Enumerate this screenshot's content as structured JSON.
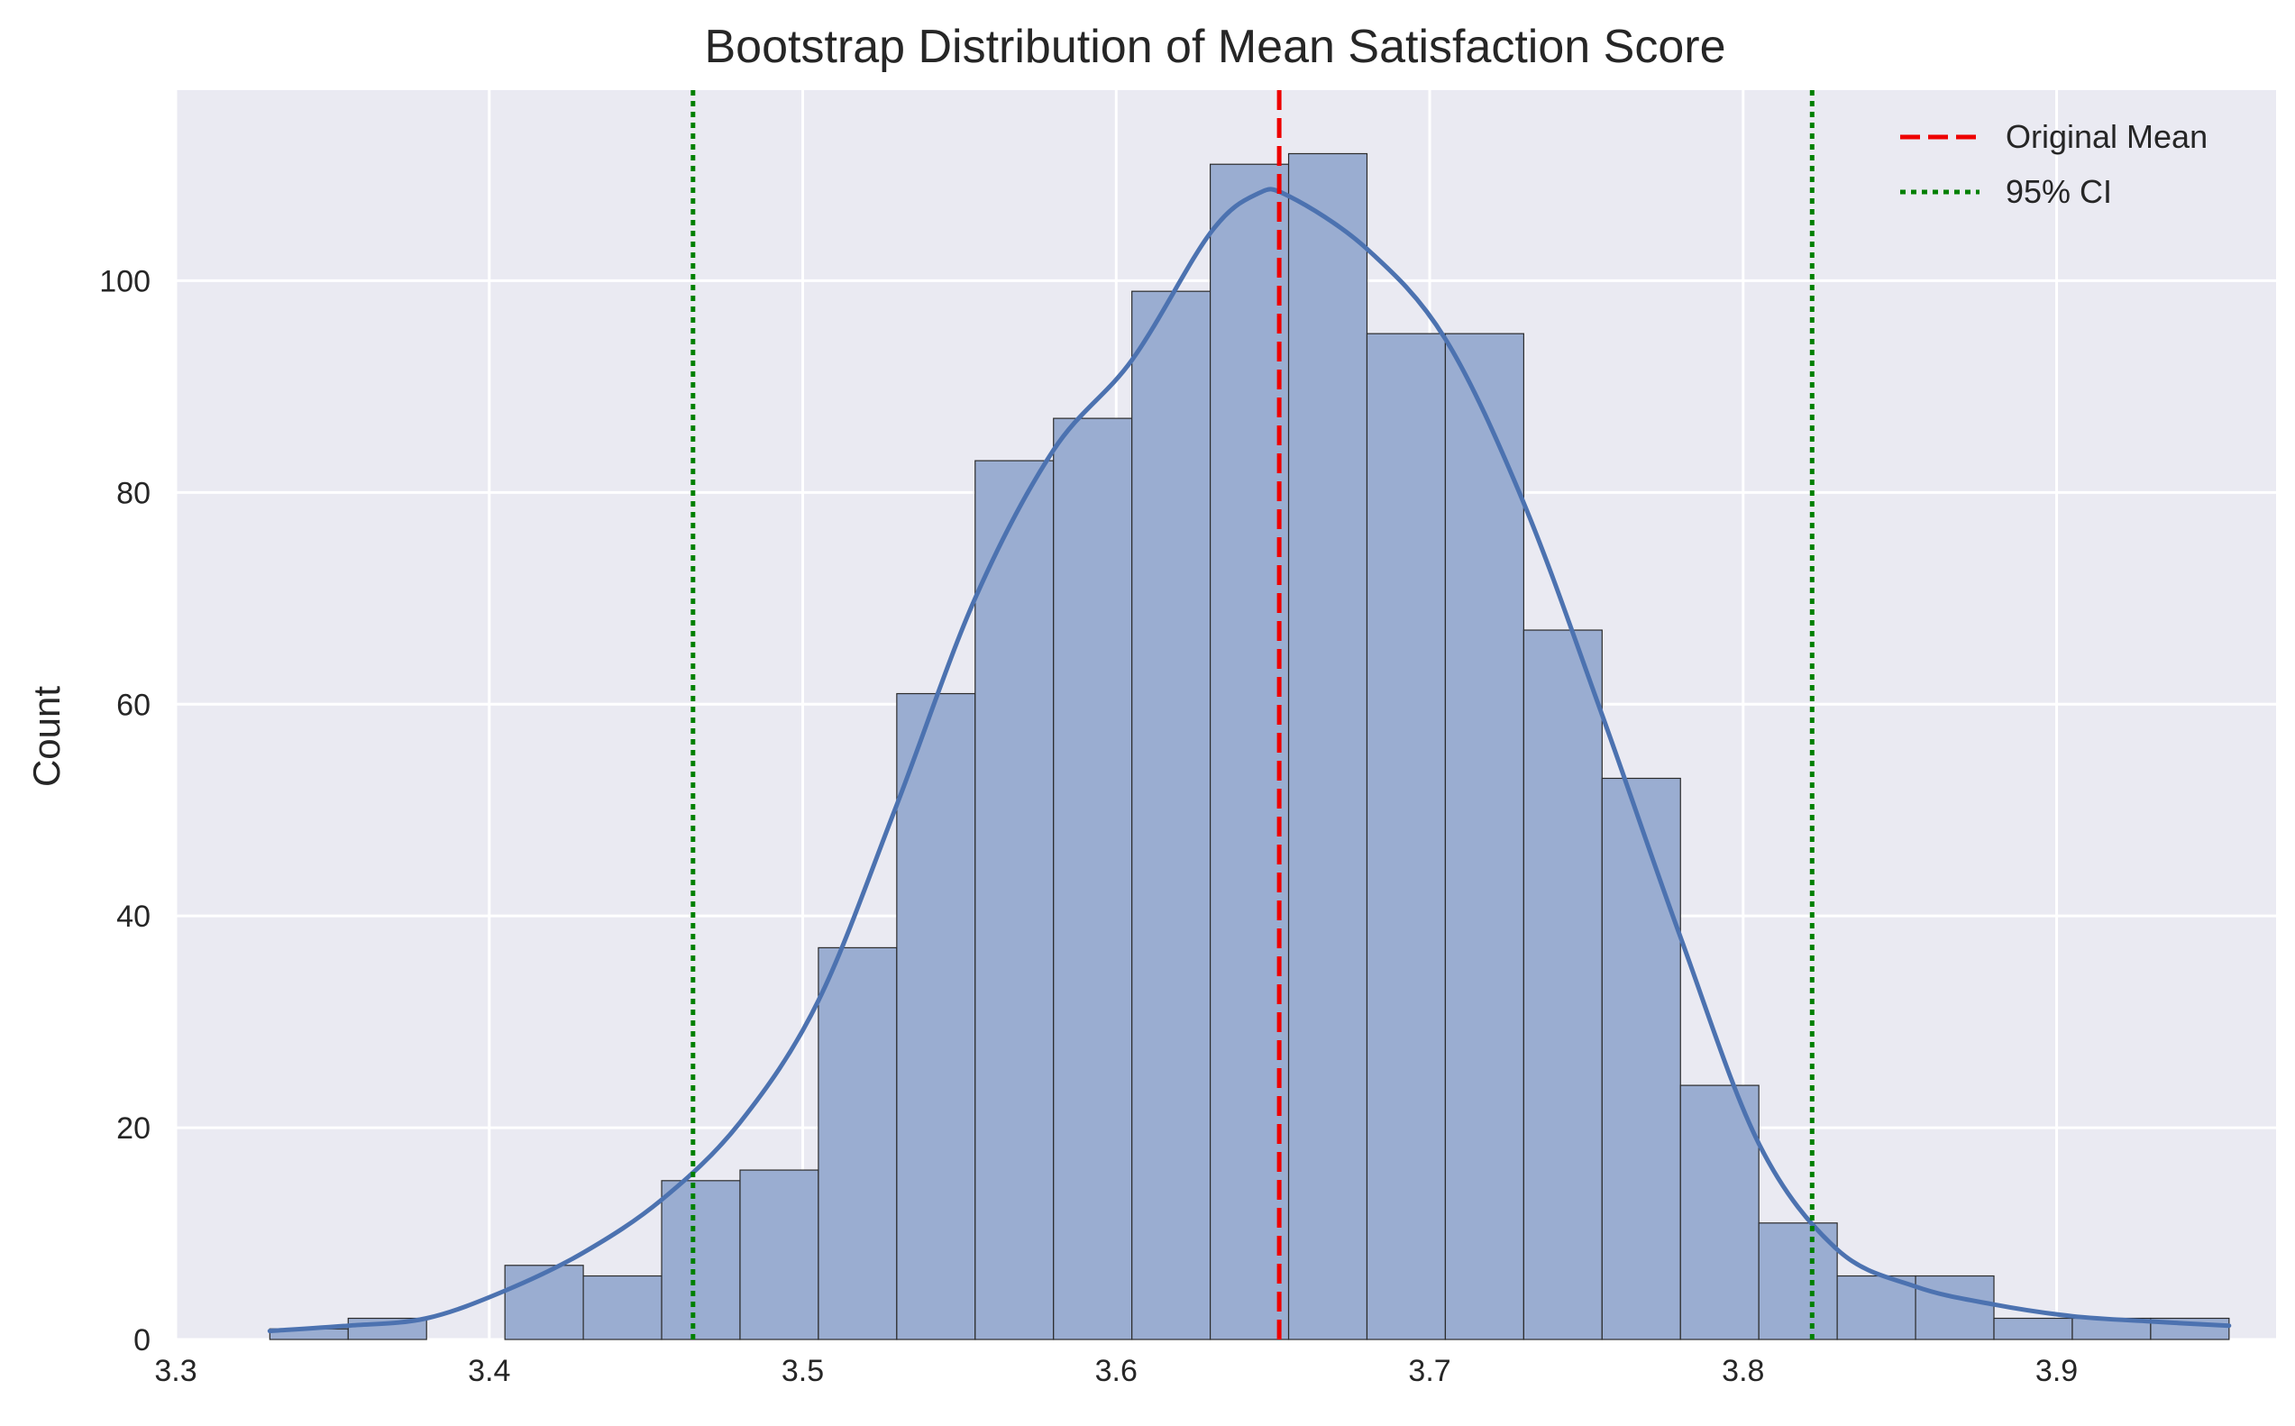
{
  "chart_data": {
    "type": "bar",
    "title": "Bootstrap Distribution of Mean Satisfaction Score",
    "xlabel": "",
    "ylabel": "Count",
    "xlim": [
      3.3,
      3.97
    ],
    "ylim": [
      0,
      118
    ],
    "xticks": [
      3.3,
      3.4,
      3.5,
      3.6,
      3.7,
      3.8,
      3.9
    ],
    "yticks": [
      0,
      20,
      40,
      60,
      80,
      100
    ],
    "grid": true,
    "legend_position": "top-right",
    "bins": {
      "edges": [
        3.33,
        3.355,
        3.38,
        3.405,
        3.43,
        3.455,
        3.48,
        3.505,
        3.53,
        3.555,
        3.58,
        3.605,
        3.63,
        3.655,
        3.68,
        3.705,
        3.73,
        3.755,
        3.78,
        3.805,
        3.83,
        3.855,
        3.88,
        3.905,
        3.93,
        3.955
      ],
      "counts": [
        1,
        2,
        0,
        7,
        6,
        15,
        16,
        37,
        61,
        83,
        87,
        99,
        111,
        112,
        95,
        95,
        67,
        53,
        24,
        11,
        6,
        6,
        2,
        2,
        2
      ]
    },
    "kde": {
      "x": [
        3.33,
        3.355,
        3.38,
        3.405,
        3.43,
        3.455,
        3.48,
        3.505,
        3.53,
        3.555,
        3.58,
        3.605,
        3.63,
        3.645,
        3.655,
        3.68,
        3.705,
        3.73,
        3.755,
        3.78,
        3.805,
        3.83,
        3.855,
        3.88,
        3.905,
        3.93,
        3.955
      ],
      "y": [
        0.8,
        1.3,
        2.0,
        4.6,
        8.2,
        13.2,
        20.5,
        32.0,
        50.5,
        70.0,
        84.0,
        92.5,
        104.5,
        108.2,
        108.0,
        103.0,
        94.5,
        79.0,
        59.0,
        38.0,
        18.5,
        8.5,
        5.0,
        3.3,
        2.2,
        1.7,
        1.3
      ]
    },
    "reference_lines": [
      {
        "name": "Original Mean",
        "x": 3.652,
        "color": "#ee0000",
        "style": "dashed"
      },
      {
        "name": "95% CI",
        "x": 3.465,
        "color": "#008000",
        "style": "dotted"
      },
      {
        "name": "95% CI",
        "x": 3.822,
        "color": "#008000",
        "style": "dotted"
      }
    ],
    "legend": [
      {
        "label": "Original Mean",
        "color": "#ee0000",
        "style": "dashed"
      },
      {
        "label": "95% CI",
        "color": "#008000",
        "style": "dotted"
      }
    ],
    "colors": {
      "background": "#eaeaf2",
      "grid": "#ffffff",
      "bar_fill": "#9aadd1",
      "bar_edge": "#2b2b2b",
      "kde_line": "#4c72b0"
    }
  }
}
